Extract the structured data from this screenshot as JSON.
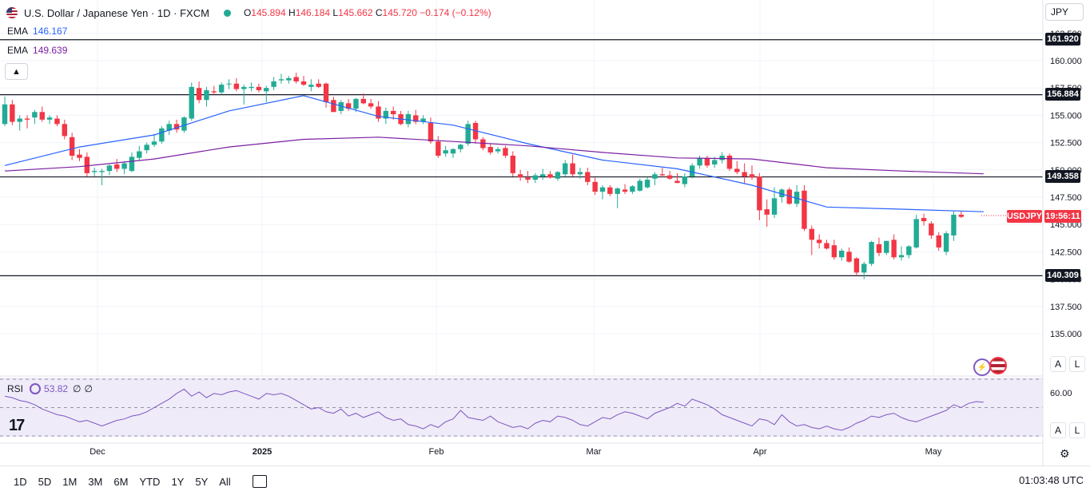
{
  "header": {
    "title": "U.S. Dollar / Japanese Yen · 1D · FXCM",
    "o_label": "O",
    "o": "145.894",
    "h_label": "H",
    "h": "146.184",
    "l_label": "L",
    "l": "145.662",
    "c_label": "C",
    "c": "145.720",
    "change": "−0.174 (−0.12%)"
  },
  "indicators": {
    "ema1": {
      "label": "EMA",
      "value": "146.167",
      "color": "#2962ff"
    },
    "ema2": {
      "label": "EMA",
      "value": "149.639",
      "color": "#7b1fa2"
    },
    "collapse_icon": "chevron-up-icon"
  },
  "currency_button": "JPY",
  "price_axis": {
    "ticks": [
      "162.500",
      "160.000",
      "157.500",
      "155.000",
      "152.500",
      "150.000",
      "147.500",
      "145.000",
      "142.500",
      "140.000",
      "137.500",
      "135.000"
    ],
    "auto_label": "A",
    "log_label": "L"
  },
  "horizontal_lines": [
    "161.920",
    "156.884",
    "149.358",
    "140.309"
  ],
  "last_price": {
    "symbol": "USDJPY",
    "countdown": "19:56:11"
  },
  "rsi": {
    "label": "RSI",
    "value": "53.82",
    "extra1": "∅",
    "extra2": "∅",
    "level_label": "60.00",
    "auto_label": "A",
    "log_label": "L"
  },
  "time_axis": [
    "Dec",
    "2025",
    "Feb",
    "Mar",
    "Apr",
    "May"
  ],
  "bottom_bar": {
    "ranges": [
      "1D",
      "5D",
      "1M",
      "3M",
      "6M",
      "YTD",
      "1Y",
      "5Y",
      "All"
    ],
    "clock": "01:03:48 UTC"
  },
  "colors": {
    "up": "#22ab94",
    "down": "#f23645",
    "ema_fast": "#2962ff",
    "ema_slow": "#7b1fa2",
    "rsi": "#7e57c2"
  },
  "chart_data": {
    "type": "candlestick",
    "ylim": [
      133.5,
      163.5
    ],
    "candles": [
      {
        "o": 154.2,
        "h": 156.7,
        "l": 154.0,
        "c": 156.0
      },
      {
        "o": 156.0,
        "h": 156.4,
        "l": 154.1,
        "c": 154.4
      },
      {
        "o": 154.4,
        "h": 155.0,
        "l": 153.6,
        "c": 154.7
      },
      {
        "o": 154.7,
        "h": 155.0,
        "l": 153.8,
        "c": 154.6
      },
      {
        "o": 154.8,
        "h": 155.5,
        "l": 154.2,
        "c": 155.3
      },
      {
        "o": 155.3,
        "h": 155.8,
        "l": 154.4,
        "c": 154.6
      },
      {
        "o": 154.6,
        "h": 155.0,
        "l": 154.2,
        "c": 154.8
      },
      {
        "o": 154.7,
        "h": 155.0,
        "l": 154.0,
        "c": 154.2
      },
      {
        "o": 154.2,
        "h": 154.6,
        "l": 152.8,
        "c": 153.1
      },
      {
        "o": 153.0,
        "h": 153.4,
        "l": 150.9,
        "c": 151.3
      },
      {
        "o": 151.4,
        "h": 151.9,
        "l": 150.8,
        "c": 151.1
      },
      {
        "o": 151.2,
        "h": 151.6,
        "l": 149.4,
        "c": 149.7
      },
      {
        "o": 149.8,
        "h": 150.2,
        "l": 149.4,
        "c": 149.9
      },
      {
        "o": 149.8,
        "h": 150.1,
        "l": 148.6,
        "c": 149.9
      },
      {
        "o": 149.9,
        "h": 150.5,
        "l": 149.5,
        "c": 150.4
      },
      {
        "o": 150.5,
        "h": 151.0,
        "l": 149.8,
        "c": 150.1
      },
      {
        "o": 150.1,
        "h": 150.8,
        "l": 149.6,
        "c": 150.6
      },
      {
        "o": 149.9,
        "h": 151.6,
        "l": 149.8,
        "c": 151.2
      },
      {
        "o": 151.1,
        "h": 152.2,
        "l": 150.9,
        "c": 151.7
      },
      {
        "o": 151.8,
        "h": 152.5,
        "l": 151.5,
        "c": 152.3
      },
      {
        "o": 152.3,
        "h": 153.3,
        "l": 152.1,
        "c": 152.6
      },
      {
        "o": 152.6,
        "h": 154.0,
        "l": 152.4,
        "c": 153.8
      },
      {
        "o": 153.6,
        "h": 154.5,
        "l": 153.2,
        "c": 154.2
      },
      {
        "o": 154.2,
        "h": 154.6,
        "l": 153.4,
        "c": 153.7
      },
      {
        "o": 153.6,
        "h": 154.9,
        "l": 153.4,
        "c": 154.8
      },
      {
        "o": 154.7,
        "h": 158.0,
        "l": 154.5,
        "c": 157.6
      },
      {
        "o": 157.5,
        "h": 158.1,
        "l": 156.1,
        "c": 156.4
      },
      {
        "o": 156.4,
        "h": 157.6,
        "l": 155.8,
        "c": 157.3
      },
      {
        "o": 157.2,
        "h": 157.7,
        "l": 156.9,
        "c": 157.1
      },
      {
        "o": 157.1,
        "h": 158.0,
        "l": 156.9,
        "c": 157.8
      },
      {
        "o": 157.9,
        "h": 158.3,
        "l": 157.4,
        "c": 157.9
      },
      {
        "o": 157.9,
        "h": 158.4,
        "l": 157.2,
        "c": 157.4
      },
      {
        "o": 157.4,
        "h": 157.8,
        "l": 156.0,
        "c": 157.6
      },
      {
        "o": 157.5,
        "h": 158.0,
        "l": 157.2,
        "c": 157.6
      },
      {
        "o": 157.6,
        "h": 157.9,
        "l": 157.1,
        "c": 157.3
      },
      {
        "o": 157.2,
        "h": 157.7,
        "l": 156.2,
        "c": 157.5
      },
      {
        "o": 157.6,
        "h": 158.5,
        "l": 157.3,
        "c": 158.1
      },
      {
        "o": 158.2,
        "h": 158.8,
        "l": 157.9,
        "c": 158.3
      },
      {
        "o": 158.2,
        "h": 158.6,
        "l": 157.9,
        "c": 158.4
      },
      {
        "o": 158.5,
        "h": 158.9,
        "l": 157.9,
        "c": 158.1
      },
      {
        "o": 158.1,
        "h": 158.6,
        "l": 157.7,
        "c": 157.8
      },
      {
        "o": 157.6,
        "h": 158.3,
        "l": 157.2,
        "c": 157.8
      },
      {
        "o": 157.9,
        "h": 158.3,
        "l": 157.5,
        "c": 157.6
      },
      {
        "o": 157.9,
        "h": 158.0,
        "l": 155.7,
        "c": 156.2
      },
      {
        "o": 156.4,
        "h": 156.7,
        "l": 155.3,
        "c": 155.3
      },
      {
        "o": 155.4,
        "h": 156.4,
        "l": 155.1,
        "c": 156.2
      },
      {
        "o": 156.1,
        "h": 156.5,
        "l": 155.4,
        "c": 155.6
      },
      {
        "o": 155.6,
        "h": 156.6,
        "l": 155.3,
        "c": 156.5
      },
      {
        "o": 156.5,
        "h": 157.0,
        "l": 156.0,
        "c": 156.1
      },
      {
        "o": 156.1,
        "h": 156.5,
        "l": 155.6,
        "c": 155.8
      },
      {
        "o": 155.8,
        "h": 156.3,
        "l": 154.4,
        "c": 154.7
      },
      {
        "o": 154.7,
        "h": 155.7,
        "l": 154.2,
        "c": 155.4
      },
      {
        "o": 155.4,
        "h": 155.8,
        "l": 154.6,
        "c": 155.1
      },
      {
        "o": 155.1,
        "h": 155.4,
        "l": 154.1,
        "c": 154.2
      },
      {
        "o": 154.2,
        "h": 155.4,
        "l": 153.9,
        "c": 155.1
      },
      {
        "o": 155.0,
        "h": 155.5,
        "l": 154.2,
        "c": 154.4
      },
      {
        "o": 154.4,
        "h": 155.0,
        "l": 154.2,
        "c": 154.7
      },
      {
        "o": 154.3,
        "h": 154.8,
        "l": 152.4,
        "c": 152.6
      },
      {
        "o": 152.6,
        "h": 153.1,
        "l": 151.1,
        "c": 151.3
      },
      {
        "o": 151.5,
        "h": 152.2,
        "l": 151.2,
        "c": 151.8
      },
      {
        "o": 151.5,
        "h": 152.0,
        "l": 151.1,
        "c": 151.9
      },
      {
        "o": 151.9,
        "h": 152.4,
        "l": 151.6,
        "c": 152.3
      },
      {
        "o": 152.4,
        "h": 154.5,
        "l": 152.2,
        "c": 154.2
      },
      {
        "o": 154.3,
        "h": 154.5,
        "l": 152.4,
        "c": 152.8
      },
      {
        "o": 152.8,
        "h": 153.0,
        "l": 151.8,
        "c": 152.0
      },
      {
        "o": 152.1,
        "h": 152.4,
        "l": 151.4,
        "c": 151.6
      },
      {
        "o": 151.7,
        "h": 152.1,
        "l": 151.5,
        "c": 151.9
      },
      {
        "o": 152.0,
        "h": 152.2,
        "l": 151.1,
        "c": 151.3
      },
      {
        "o": 151.3,
        "h": 151.7,
        "l": 149.4,
        "c": 149.7
      },
      {
        "o": 149.6,
        "h": 150.0,
        "l": 149.0,
        "c": 149.3
      },
      {
        "o": 149.3,
        "h": 149.9,
        "l": 148.8,
        "c": 149.1
      },
      {
        "o": 149.1,
        "h": 149.7,
        "l": 148.8,
        "c": 149.5
      },
      {
        "o": 149.4,
        "h": 150.1,
        "l": 149.1,
        "c": 149.6
      },
      {
        "o": 149.6,
        "h": 149.9,
        "l": 149.2,
        "c": 149.3
      },
      {
        "o": 149.2,
        "h": 149.9,
        "l": 149.0,
        "c": 149.8
      },
      {
        "o": 149.6,
        "h": 150.9,
        "l": 149.4,
        "c": 150.6
      },
      {
        "o": 150.6,
        "h": 151.4,
        "l": 149.4,
        "c": 149.6
      },
      {
        "o": 149.6,
        "h": 150.2,
        "l": 149.2,
        "c": 149.8
      },
      {
        "o": 149.8,
        "h": 150.2,
        "l": 148.6,
        "c": 148.9
      },
      {
        "o": 148.9,
        "h": 149.3,
        "l": 147.7,
        "c": 148.0
      },
      {
        "o": 148.0,
        "h": 148.6,
        "l": 147.3,
        "c": 148.4
      },
      {
        "o": 148.4,
        "h": 148.6,
        "l": 147.6,
        "c": 147.8
      },
      {
        "o": 147.8,
        "h": 148.4,
        "l": 146.5,
        "c": 148.3
      },
      {
        "o": 148.2,
        "h": 148.7,
        "l": 147.8,
        "c": 148.0
      },
      {
        "o": 148.0,
        "h": 148.6,
        "l": 147.8,
        "c": 148.5
      },
      {
        "o": 148.1,
        "h": 149.2,
        "l": 148.0,
        "c": 149.0
      },
      {
        "o": 148.4,
        "h": 149.3,
        "l": 148.3,
        "c": 149.1
      },
      {
        "o": 149.2,
        "h": 149.8,
        "l": 148.6,
        "c": 149.6
      },
      {
        "o": 149.6,
        "h": 150.2,
        "l": 149.3,
        "c": 149.5
      },
      {
        "o": 149.5,
        "h": 149.9,
        "l": 149.1,
        "c": 149.2
      },
      {
        "o": 149.0,
        "h": 149.7,
        "l": 148.8,
        "c": 148.8
      },
      {
        "o": 148.7,
        "h": 149.7,
        "l": 148.4,
        "c": 149.4
      },
      {
        "o": 149.4,
        "h": 150.6,
        "l": 149.2,
        "c": 150.4
      },
      {
        "o": 150.4,
        "h": 151.3,
        "l": 150.1,
        "c": 151.1
      },
      {
        "o": 151.1,
        "h": 151.3,
        "l": 150.2,
        "c": 150.4
      },
      {
        "o": 150.5,
        "h": 151.2,
        "l": 150.2,
        "c": 150.9
      },
      {
        "o": 150.9,
        "h": 151.6,
        "l": 150.6,
        "c": 151.3
      },
      {
        "o": 151.3,
        "h": 151.5,
        "l": 149.9,
        "c": 150.1
      },
      {
        "o": 150.1,
        "h": 150.8,
        "l": 149.6,
        "c": 149.8
      },
      {
        "o": 149.8,
        "h": 150.6,
        "l": 148.7,
        "c": 149.4
      },
      {
        "o": 149.6,
        "h": 150.4,
        "l": 149.1,
        "c": 149.3
      },
      {
        "o": 149.4,
        "h": 149.7,
        "l": 145.4,
        "c": 146.3
      },
      {
        "o": 146.4,
        "h": 147.3,
        "l": 144.8,
        "c": 145.9
      },
      {
        "o": 145.9,
        "h": 148.4,
        "l": 145.6,
        "c": 147.4
      },
      {
        "o": 147.5,
        "h": 148.3,
        "l": 147.0,
        "c": 148.2
      },
      {
        "o": 148.2,
        "h": 148.4,
        "l": 146.8,
        "c": 146.9
      },
      {
        "o": 146.9,
        "h": 148.6,
        "l": 146.6,
        "c": 148.0
      },
      {
        "o": 148.1,
        "h": 148.6,
        "l": 144.4,
        "c": 144.6
      },
      {
        "o": 144.6,
        "h": 144.9,
        "l": 142.2,
        "c": 143.6
      },
      {
        "o": 143.6,
        "h": 144.1,
        "l": 142.8,
        "c": 143.3
      },
      {
        "o": 143.3,
        "h": 143.6,
        "l": 142.7,
        "c": 142.8
      },
      {
        "o": 143.1,
        "h": 143.6,
        "l": 141.8,
        "c": 142.0
      },
      {
        "o": 142.0,
        "h": 142.8,
        "l": 141.7,
        "c": 142.6
      },
      {
        "o": 142.5,
        "h": 142.9,
        "l": 141.5,
        "c": 141.6
      },
      {
        "o": 141.9,
        "h": 142.0,
        "l": 140.3,
        "c": 140.6
      },
      {
        "o": 140.6,
        "h": 141.6,
        "l": 140.0,
        "c": 141.4
      },
      {
        "o": 141.4,
        "h": 143.5,
        "l": 141.2,
        "c": 143.4
      },
      {
        "o": 143.2,
        "h": 143.8,
        "l": 142.1,
        "c": 142.4
      },
      {
        "o": 142.4,
        "h": 143.5,
        "l": 142.2,
        "c": 143.5
      },
      {
        "o": 143.6,
        "h": 144.1,
        "l": 141.8,
        "c": 142.0
      },
      {
        "o": 142.0,
        "h": 143.0,
        "l": 141.7,
        "c": 142.2
      },
      {
        "o": 142.2,
        "h": 143.1,
        "l": 141.9,
        "c": 143.0
      },
      {
        "o": 142.9,
        "h": 145.9,
        "l": 142.8,
        "c": 145.5
      },
      {
        "o": 145.6,
        "h": 146.0,
        "l": 144.9,
        "c": 145.3
      },
      {
        "o": 145.1,
        "h": 145.3,
        "l": 143.7,
        "c": 144.0
      },
      {
        "o": 144.0,
        "h": 144.3,
        "l": 142.6,
        "c": 142.9
      },
      {
        "o": 142.5,
        "h": 144.4,
        "l": 142.2,
        "c": 144.2
      },
      {
        "o": 144.0,
        "h": 146.2,
        "l": 143.5,
        "c": 145.9
      },
      {
        "o": 145.9,
        "h": 146.2,
        "l": 145.6,
        "c": 145.7
      }
    ],
    "ema_fast": [
      [
        0,
        150.4
      ],
      [
        10,
        152.1
      ],
      [
        20,
        153.2
      ],
      [
        30,
        155.4
      ],
      [
        40,
        156.8
      ],
      [
        50,
        154.9
      ],
      [
        60,
        154.1
      ],
      [
        70,
        152.4
      ],
      [
        80,
        150.9
      ],
      [
        90,
        150.1
      ],
      [
        100,
        148.6
      ],
      [
        110,
        146.6
      ],
      [
        120,
        146.4
      ],
      [
        131,
        146.17
      ]
    ],
    "ema_slow": [
      [
        0,
        149.9
      ],
      [
        10,
        150.3
      ],
      [
        20,
        151.0
      ],
      [
        30,
        152.1
      ],
      [
        40,
        152.8
      ],
      [
        50,
        153.0
      ],
      [
        60,
        152.6
      ],
      [
        70,
        152.2
      ],
      [
        80,
        151.6
      ],
      [
        90,
        151.1
      ],
      [
        100,
        151.0
      ],
      [
        110,
        150.2
      ],
      [
        120,
        149.9
      ],
      [
        131,
        149.64
      ]
    ],
    "rsi": [
      58,
      57,
      55,
      54,
      52,
      49,
      47,
      45,
      44,
      42,
      40,
      41,
      39,
      37,
      39,
      41,
      42,
      44,
      45,
      47,
      50,
      53,
      56,
      60,
      63,
      58,
      61,
      57,
      60,
      59,
      61,
      62,
      60,
      58,
      56,
      60,
      59,
      60,
      58,
      55,
      52,
      49,
      50,
      47,
      46,
      49,
      44,
      46,
      43,
      45,
      47,
      43,
      41,
      42,
      38,
      37,
      35,
      38,
      36,
      40,
      42,
      48,
      43,
      42,
      41,
      44,
      40,
      38,
      36,
      37,
      35,
      39,
      41,
      40,
      44,
      43,
      41,
      38,
      37,
      40,
      43,
      42,
      45,
      47,
      46,
      44,
      42,
      46,
      48,
      50,
      53,
      51,
      56,
      54,
      52,
      49,
      45,
      43,
      41,
      39,
      37,
      42,
      41,
      38,
      45,
      40,
      37,
      38,
      36,
      35,
      37,
      35,
      34,
      36,
      39,
      41,
      44,
      43,
      45,
      46,
      43,
      41,
      40,
      42,
      44,
      46,
      48,
      52,
      50,
      53,
      54.2,
      53.82
    ],
    "rsi_levels": [
      70,
      50,
      30
    ]
  }
}
